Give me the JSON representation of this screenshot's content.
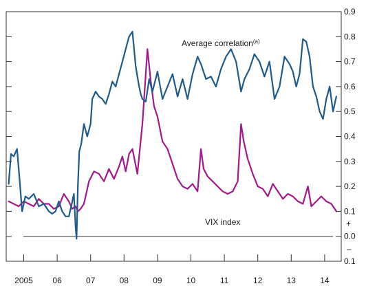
{
  "chart_data": {
    "type": "line",
    "title": "",
    "xlabel": "",
    "ylabel": "",
    "x_tick_labels": [
      "2005",
      "06",
      "07",
      "08",
      "09",
      "10",
      "11",
      "12",
      "13",
      "14"
    ],
    "xlim": [
      2004.5,
      2014.6
    ],
    "right_axis": {
      "ylim": [
        -0.1,
        0.9
      ],
      "ticks": [
        {
          "value": 0.9,
          "label": "0.9"
        },
        {
          "value": 0.8,
          "label": "0.8"
        },
        {
          "value": 0.7,
          "label": "0.7"
        },
        {
          "value": 0.6,
          "label": "0.6"
        },
        {
          "value": 0.5,
          "label": "0.5"
        },
        {
          "value": 0.4,
          "label": "0.4"
        },
        {
          "value": 0.3,
          "label": "0.3"
        },
        {
          "value": 0.2,
          "label": "0.2"
        },
        {
          "value": 0.1,
          "label": "0.1"
        },
        {
          "value": 0.0,
          "label": "0.0"
        },
        {
          "value": -0.1,
          "label": "0.1"
        }
      ],
      "plus_sign": "+",
      "minus_sign": "–"
    },
    "grid": false,
    "zero_line": 0.0,
    "series": [
      {
        "name": "Average correlation",
        "label_superscript": "(a)",
        "color": "#1f5a8c",
        "x": [
          2004.55,
          2004.62,
          2004.7,
          2004.8,
          2004.88,
          2004.95,
          2005.05,
          2005.15,
          2005.3,
          2005.45,
          2005.6,
          2005.75,
          2005.85,
          2005.95,
          2006.05,
          2006.15,
          2006.25,
          2006.35,
          2006.42,
          2006.5,
          2006.55,
          2006.58,
          2006.62,
          2006.66,
          2006.72,
          2006.8,
          2006.9,
          2007.0,
          2007.05,
          2007.15,
          2007.25,
          2007.35,
          2007.45,
          2007.55,
          2007.65,
          2007.75,
          2007.85,
          2007.95,
          2008.05,
          2008.15,
          2008.25,
          2008.35,
          2008.45,
          2008.5,
          2008.55,
          2008.65,
          2008.75,
          2008.85,
          2009.0,
          2009.15,
          2009.3,
          2009.45,
          2009.6,
          2009.75,
          2009.9,
          2010.05,
          2010.2,
          2010.3,
          2010.45,
          2010.6,
          2010.75,
          2010.9,
          2011.05,
          2011.2,
          2011.35,
          2011.5,
          2011.6,
          2011.75,
          2011.9,
          2012.05,
          2012.2,
          2012.35,
          2012.5,
          2012.65,
          2012.8,
          2012.95,
          2013.05,
          2013.15,
          2013.25,
          2013.35,
          2013.45,
          2013.55,
          2013.65,
          2013.75,
          2013.85,
          2013.95,
          2014.05,
          2014.15,
          2014.25,
          2014.35
        ],
        "values": [
          0.21,
          0.33,
          0.32,
          0.35,
          0.22,
          0.1,
          0.16,
          0.15,
          0.17,
          0.12,
          0.13,
          0.1,
          0.09,
          0.1,
          0.14,
          0.1,
          0.08,
          0.08,
          0.12,
          0.17,
          0.04,
          -0.01,
          0.2,
          0.34,
          0.37,
          0.45,
          0.4,
          0.45,
          0.55,
          0.58,
          0.56,
          0.55,
          0.53,
          0.57,
          0.62,
          0.6,
          0.65,
          0.7,
          0.75,
          0.8,
          0.82,
          0.68,
          0.6,
          0.57,
          0.55,
          0.54,
          0.63,
          0.58,
          0.66,
          0.55,
          0.6,
          0.65,
          0.56,
          0.63,
          0.55,
          0.65,
          0.72,
          0.69,
          0.63,
          0.64,
          0.6,
          0.67,
          0.72,
          0.75,
          0.7,
          0.58,
          0.63,
          0.67,
          0.73,
          0.7,
          0.64,
          0.7,
          0.55,
          0.6,
          0.72,
          0.69,
          0.66,
          0.6,
          0.65,
          0.79,
          0.78,
          0.72,
          0.6,
          0.56,
          0.5,
          0.47,
          0.55,
          0.6,
          0.5,
          0.56
        ]
      },
      {
        "name": "VIX index",
        "color": "#a3198a",
        "x": [
          2004.55,
          2004.7,
          2004.85,
          2005.0,
          2005.15,
          2005.3,
          2005.45,
          2005.6,
          2005.75,
          2005.9,
          2006.05,
          2006.2,
          2006.35,
          2006.45,
          2006.55,
          2006.62,
          2006.7,
          2006.8,
          2006.95,
          2007.1,
          2007.25,
          2007.4,
          2007.55,
          2007.7,
          2007.85,
          2007.95,
          2008.05,
          2008.15,
          2008.25,
          2008.4,
          2008.55,
          2008.7,
          2008.8,
          2008.9,
          2009.0,
          2009.15,
          2009.3,
          2009.45,
          2009.6,
          2009.75,
          2009.9,
          2010.05,
          2010.2,
          2010.3,
          2010.38,
          2010.5,
          2010.65,
          2010.8,
          2010.95,
          2011.1,
          2011.25,
          2011.4,
          2011.5,
          2011.58,
          2011.7,
          2011.85,
          2012.0,
          2012.15,
          2012.3,
          2012.45,
          2012.6,
          2012.75,
          2012.9,
          2013.05,
          2013.2,
          2013.35,
          2013.5,
          2013.6,
          2013.75,
          2013.9,
          2014.05,
          2014.2,
          2014.35
        ],
        "values": [
          0.14,
          0.13,
          0.12,
          0.14,
          0.13,
          0.12,
          0.15,
          0.13,
          0.13,
          0.11,
          0.12,
          0.17,
          0.14,
          0.11,
          0.12,
          0.1,
          0.11,
          0.13,
          0.22,
          0.26,
          0.25,
          0.22,
          0.27,
          0.23,
          0.28,
          0.32,
          0.26,
          0.33,
          0.35,
          0.25,
          0.45,
          0.75,
          0.62,
          0.52,
          0.48,
          0.38,
          0.35,
          0.29,
          0.23,
          0.2,
          0.19,
          0.21,
          0.18,
          0.35,
          0.27,
          0.24,
          0.22,
          0.2,
          0.18,
          0.17,
          0.18,
          0.22,
          0.45,
          0.38,
          0.31,
          0.25,
          0.2,
          0.19,
          0.16,
          0.21,
          0.18,
          0.15,
          0.17,
          0.16,
          0.14,
          0.13,
          0.2,
          0.12,
          0.14,
          0.16,
          0.14,
          0.13,
          0.1
        ]
      }
    ]
  }
}
